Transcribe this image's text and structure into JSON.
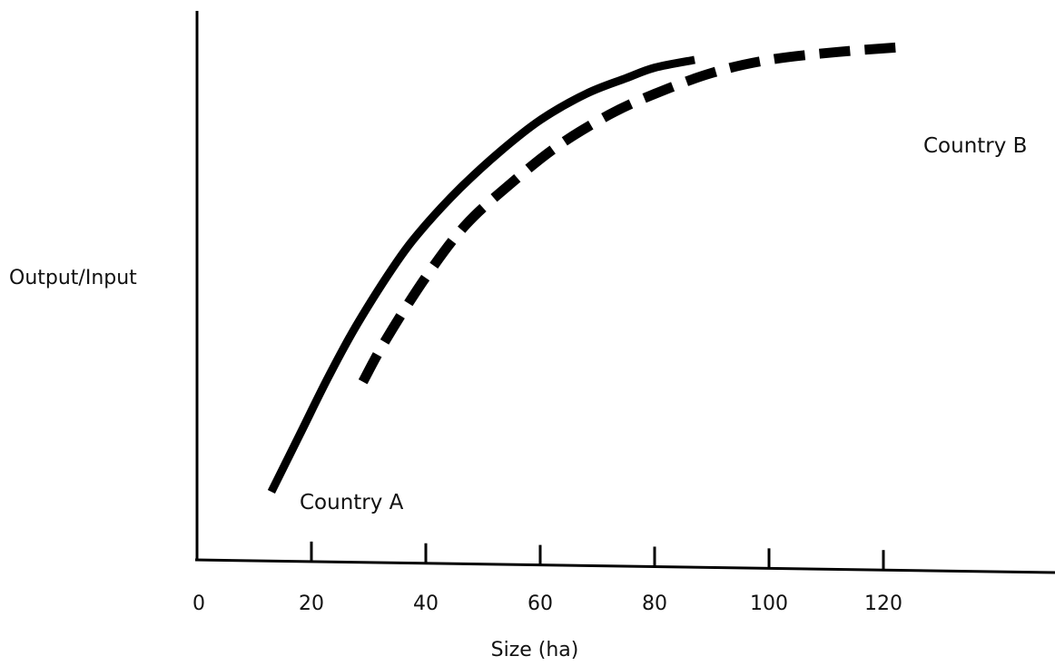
{
  "chart_data": {
    "type": "line",
    "title": "",
    "xlabel": "Size (ha)",
    "ylabel": "Output/Input",
    "xlim": [
      0,
      140
    ],
    "ylim": [
      0,
      100
    ],
    "x_ticks": [
      0,
      20,
      40,
      60,
      80,
      100,
      120
    ],
    "y_ticks_shown": false,
    "grid": false,
    "legend": "none",
    "series": [
      {
        "name": "Country A",
        "style": "solid",
        "color": "#000000",
        "points": [
          {
            "x": 13,
            "y": 13
          },
          {
            "x": 18,
            "y": 24
          },
          {
            "x": 23,
            "y": 35
          },
          {
            "x": 28,
            "y": 45
          },
          {
            "x": 35,
            "y": 57
          },
          {
            "x": 40,
            "y": 64
          },
          {
            "x": 46,
            "y": 71
          },
          {
            "x": 53,
            "y": 78
          },
          {
            "x": 60,
            "y": 84
          },
          {
            "x": 68,
            "y": 89
          },
          {
            "x": 75,
            "y": 92
          },
          {
            "x": 80,
            "y": 94
          },
          {
            "x": 87,
            "y": 95.5
          }
        ]
      },
      {
        "name": "Country B",
        "style": "dashed",
        "color": "#000000",
        "points": [
          {
            "x": 29,
            "y": 34
          },
          {
            "x": 33,
            "y": 42
          },
          {
            "x": 40,
            "y": 54
          },
          {
            "x": 47,
            "y": 64
          },
          {
            "x": 55,
            "y": 72
          },
          {
            "x": 63,
            "y": 79
          },
          {
            "x": 72,
            "y": 85
          },
          {
            "x": 80,
            "y": 89
          },
          {
            "x": 90,
            "y": 93
          },
          {
            "x": 100,
            "y": 95.5
          },
          {
            "x": 112,
            "y": 97
          },
          {
            "x": 124,
            "y": 98
          }
        ]
      }
    ]
  }
}
